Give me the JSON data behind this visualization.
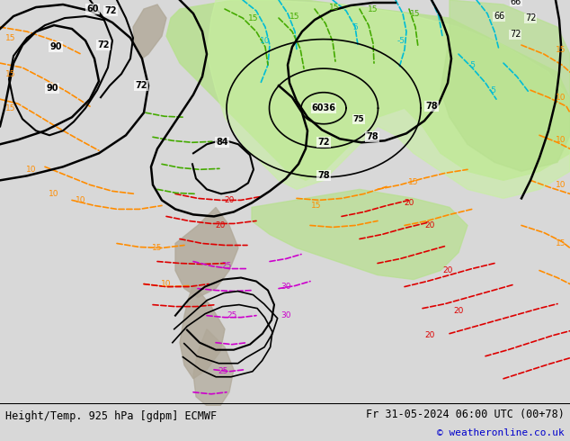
{
  "title_left": "Height/Temp. 925 hPa [gdpm] ECMWF",
  "title_right": "Fr 31-05-2024 06:00 UTC (00+78)",
  "copyright": "© weatheronline.co.uk",
  "bg_color": "#d8d8d8",
  "bottom_bar_color": "#ffffff",
  "copyright_color": "#0000cc",
  "figsize": [
    6.34,
    4.9
  ],
  "dpi": 100,
  "green1": "#b8e090",
  "green2": "#c8f0a0",
  "green3": "#a0d870",
  "gray_color": "#b0a898",
  "orange": "#ff8c00",
  "cyan": "#00bcd4",
  "red": "#dd0000",
  "magenta": "#cc00cc",
  "grn": "#44aa00"
}
